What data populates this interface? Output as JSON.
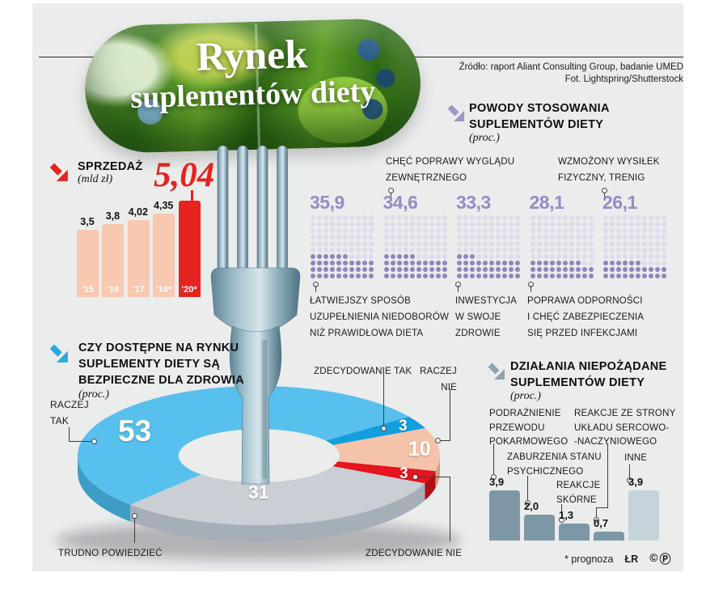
{
  "title": {
    "line1": "Rynek",
    "line2": "suplementów diety"
  },
  "source": {
    "line1": "Źródło: raport Aliant Consulting Group, badanie UMED",
    "line2": "Fot. Lightspring/Shutterstock"
  },
  "sales": {
    "heading": "SPRZEDAŻ",
    "unit": "(mld zł)",
    "categories": [
      "'15",
      "'16",
      "'17",
      "'18*",
      "'20*"
    ],
    "display_values": [
      "3,5",
      "3,8",
      "4,02",
      "4,35"
    ],
    "highlight_display": "5,04",
    "values": [
      3.5,
      3.8,
      4.02,
      4.35,
      5.04
    ],
    "bar_color": "#f8c8b0",
    "highlight_color": "#e5231f"
  },
  "reasons": {
    "heading_line1": "POWODY STOSOWANIA",
    "heading_line2": "SUPLEMENTÓW DIETY",
    "unit": "(proc.)",
    "dot_filled_color": "#8b87bd",
    "dot_empty_color": "#dddbec",
    "value_color": "#918ec4",
    "items": [
      {
        "display": "35,9",
        "value": 35.9,
        "label_lines": [
          "ŁATWIEJSZY SPOSÓB",
          "UZUPEŁNIENIA NIEDOBORÓW",
          "NIŻ PRAWIDŁOWA DIETA"
        ]
      },
      {
        "display": "34,6",
        "value": 34.6,
        "label_lines": [
          "CHĘĆ POPRAWY WYGLĄDU",
          "ZEWNĘTRZNEGO"
        ]
      },
      {
        "display": "33,3",
        "value": 33.3,
        "label_lines": [
          "INWESTYCJA",
          "W SWOJE",
          "ZDROWIE"
        ]
      },
      {
        "display": "28,1",
        "value": 28.1,
        "label_lines": [
          "POPRAWA ODPORNOŚCI",
          "I CHĘĆ ZABEZPIECZENIA",
          "SIĘ PRZED INFEKCJAMI"
        ]
      },
      {
        "display": "26,1",
        "value": 26.1,
        "label_lines": [
          "WZMOŻONY WYSIŁEK",
          "FIZYCZNY, TRENIG"
        ]
      }
    ]
  },
  "safety": {
    "heading_lines": [
      "CZY DOSTĘPNE NA RYNKU",
      "SUPLEMENTY DIETY SĄ",
      "BEZPIECZNE DLA ZDROWIA"
    ],
    "unit": "(proc.)",
    "start_angle": -34,
    "segments": [
      {
        "label": "ZDECYDOWANIE TAK",
        "display": "3",
        "value": 3,
        "color": "#129fdd",
        "side_color": "#0d7fb2"
      },
      {
        "label": "RACZEJ NIE",
        "label_lines": [
          "RACZEJ",
          "NIE"
        ],
        "display": "10",
        "value": 10,
        "color": "#f4c3aa",
        "side_color": "#d79b82"
      },
      {
        "label": "ZDECYDOWANIE NIE",
        "display": "3",
        "value": 3,
        "color": "#e5141e",
        "side_color": "#ad0f16"
      },
      {
        "label": "TRUDNO POWIEDZIEĆ",
        "display": "31",
        "value": 31,
        "color": "#c9cfd4",
        "side_color": "#a6afb7"
      },
      {
        "label": "RACZEJ TAK",
        "label_lines": [
          "RACZEJ",
          "TAK"
        ],
        "display": "53",
        "value": 53,
        "color": "#58c0ec",
        "side_color": "#3d9dc7"
      }
    ]
  },
  "side_effects": {
    "heading_line1": "DZIAŁANIA NIEPOŻĄDANE",
    "heading_line2": "SUPLEMENTÓW DIETY",
    "unit": "(proc.)",
    "bar_color": "#7d97a6",
    "last_bar_color": "#c5d4db",
    "items": [
      {
        "display": "3,9",
        "value": 3.9,
        "label_lines": [
          "PODRAŻNIENIE",
          "PRZEWODU",
          "POKARMOWEGO"
        ]
      },
      {
        "display": "2,0",
        "value": 2.0,
        "label_lines": [
          "ZABURZENIA STANU",
          "PSYCHICZNEGO"
        ]
      },
      {
        "display": "1,3",
        "value": 1.3,
        "label_lines": [
          "REAKCJE",
          "SKÓRNE"
        ]
      },
      {
        "display": "0,7",
        "value": 0.7,
        "label_lines": [
          "REAKCJE ZE STRONY",
          "UKŁADU SERCOWO-",
          "-NACZYNIOWEGO"
        ]
      },
      {
        "display": "3,9",
        "value": 3.9,
        "label_lines": [
          "INNE"
        ]
      }
    ]
  },
  "footer": {
    "note": "* prognoza",
    "credit": "ŁR",
    "icon_c": "©",
    "icon_p": "Ⓟ",
    "icon_color": "#e5231f"
  },
  "chart_data": [
    {
      "type": "bar",
      "title": "Sprzedaż (mld zł)",
      "categories": [
        "'15",
        "'16",
        "'17",
        "'18*",
        "'20*"
      ],
      "values": [
        3.5,
        3.8,
        4.02,
        4.35,
        5.04
      ],
      "ylabel": "mld zł",
      "highlight_index": 4,
      "annotations": [
        "* prognoza"
      ]
    },
    {
      "type": "bar",
      "style": "dot-matrix-pictogram-10x10",
      "title": "Powody stosowania suplementów diety (proc.)",
      "categories": [
        "Łatwiejszy sposób uzupełnienia niedoborów niż prawidłowa dieta",
        "Chęć poprawy wyglądu zewnętrznego",
        "Inwestycja w swoje zdrowie",
        "Poprawa odporności i chęć zabezpieczenia się przed infekcjami",
        "Wzmożony wysiłek fizyczny, trenig"
      ],
      "values": [
        35.9,
        34.6,
        33.3,
        28.1,
        26.1
      ]
    },
    {
      "type": "pie",
      "style": "3d-donut",
      "title": "Czy dostępne na rynku suplementy diety są bezpieczne dla zdrowia (proc.)",
      "labels": [
        "Raczej tak",
        "Zdecydowanie tak",
        "Raczej nie",
        "Zdecydowanie nie",
        "Trudno powiedzieć"
      ],
      "values": [
        53,
        3,
        10,
        3,
        31
      ]
    },
    {
      "type": "bar",
      "title": "Działania niepożądane suplementów diety (proc.)",
      "categories": [
        "Podrażnienie przewodu pokarmowego",
        "Zaburzenia stanu psychicznego",
        "Reakcje skórne",
        "Reakcje ze strony układu sercowo-naczyniowego",
        "Inne"
      ],
      "values": [
        3.9,
        2.0,
        1.3,
        0.7,
        3.9
      ]
    }
  ]
}
